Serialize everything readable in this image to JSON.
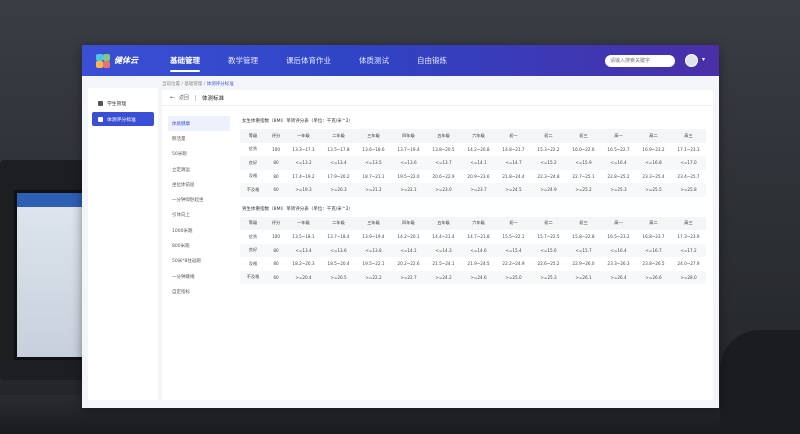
{
  "app": {
    "logo_text": "健体云",
    "nav": [
      "基础管理",
      "教学管理",
      "课后体育作业",
      "体质测试",
      "自由锻炼"
    ],
    "search_placeholder": "请输入搜索关键字"
  },
  "sidebar": {
    "items": [
      {
        "label": "学生管理",
        "icon": "student-icon",
        "active": false
      },
      {
        "label": "体测评分标准",
        "icon": "standard-icon",
        "active": true
      }
    ]
  },
  "breadcrumb": {
    "root": "当前位置",
    "level1": "基础管理",
    "current": "体测评分标准"
  },
  "main": {
    "back_label": "返回",
    "title": "体测标准",
    "items": [
      "体质健康",
      "肺活量",
      "50米跑",
      "立定跳远",
      "坐位体前屈",
      "一分钟仰卧起坐",
      "引体向上",
      "1000米跑",
      "800米跑",
      "50米*8往返跑",
      "一分钟跳绳",
      "自定指标"
    ]
  },
  "tables": [
    {
      "title": "女生体重指数（BMI）单项评分表（单位：千克/米^2）",
      "headers": [
        "等级",
        "评分",
        "一年级",
        "二年级",
        "三年级",
        "四年级",
        "五年级",
        "六年级",
        "初一",
        "初二",
        "初三",
        "高一",
        "高二",
        "高三"
      ],
      "rows": [
        [
          "优秀",
          "100",
          "13.3~17.3",
          "13.5~17.8",
          "13.6~18.6",
          "13.7~19.4",
          "13.8~20.5",
          "14.2~20.8",
          "14.8~21.7",
          "15.3~22.2",
          "16.0~22.6",
          "16.5~22.7",
          "16.9~23.2",
          "17.1~23.3"
        ],
        [
          "良好",
          "80",
          "<=13.2",
          "<=13.4",
          "<=13.5",
          "<=13.6",
          "<=13.7",
          "<=14.1",
          "<=14.7",
          "<=15.2",
          "<=15.9",
          "<=16.4",
          "<=16.8",
          "<=17.0"
        ],
        [
          "及格",
          "80",
          "17.4~19.2",
          "17.9~20.2",
          "18.7~21.1",
          "19.5~22.0",
          "20.6~22.9",
          "20.9~23.6",
          "21.8~24.4",
          "22.3~24.8",
          "22.7~25.1",
          "22.8~25.2",
          "23.3~25.4",
          "23.4~25.7"
        ],
        [
          "不及格",
          "60",
          ">=19.3",
          ">=20.3",
          ">=21.2",
          ">=22.1",
          ">=23.0",
          ">=23.7",
          ">=24.5",
          ">=24.9",
          ">=25.2",
          ">=25.3",
          ">=25.5",
          ">=25.8"
        ]
      ]
    },
    {
      "title": "男生体重指数（BMI）单项评分表（单位：千克/米^2）",
      "headers": [
        "等级",
        "评分",
        "一年级",
        "二年级",
        "三年级",
        "四年级",
        "五年级",
        "六年级",
        "初一",
        "初二",
        "初三",
        "高一",
        "高二",
        "高三"
      ],
      "rows": [
        [
          "优秀",
          "100",
          "13.5~18.1",
          "13.7~18.4",
          "13.9~19.4",
          "14.2~20.1",
          "14.4~21.4",
          "14.7~21.8",
          "15.5~22.1",
          "15.7~22.5",
          "15.8~22.8",
          "16.5~23.2",
          "16.8~23.7",
          "17.3~23.9"
        ],
        [
          "良好",
          "80",
          "<=13.4",
          "<=13.6",
          "<=13.8",
          "<=14.1",
          "<=14.3",
          "<=14.6",
          "<=15.4",
          "<=15.6",
          "<=15.7",
          "<=16.4",
          "<=16.7",
          "<=17.2"
        ],
        [
          "及格",
          "80",
          "18.2~20.3",
          "18.5~20.4",
          "19.5~22.1",
          "20.2~22.6",
          "21.5~24.1",
          "21.9~24.5",
          "22.2~24.9",
          "22.6~25.2",
          "22.9~26.0",
          "23.3~26.3",
          "23.8~26.5",
          "24.0~27.9"
        ],
        [
          "不及格",
          "60",
          ">=20.4",
          ">=20.5",
          ">=22.2",
          ">=22.7",
          ">=24.2",
          ">=24.6",
          ">=25.0",
          ">=25.3",
          ">=26.1",
          ">=26.4",
          ">=26.6",
          ">=28.0"
        ]
      ]
    }
  ]
}
